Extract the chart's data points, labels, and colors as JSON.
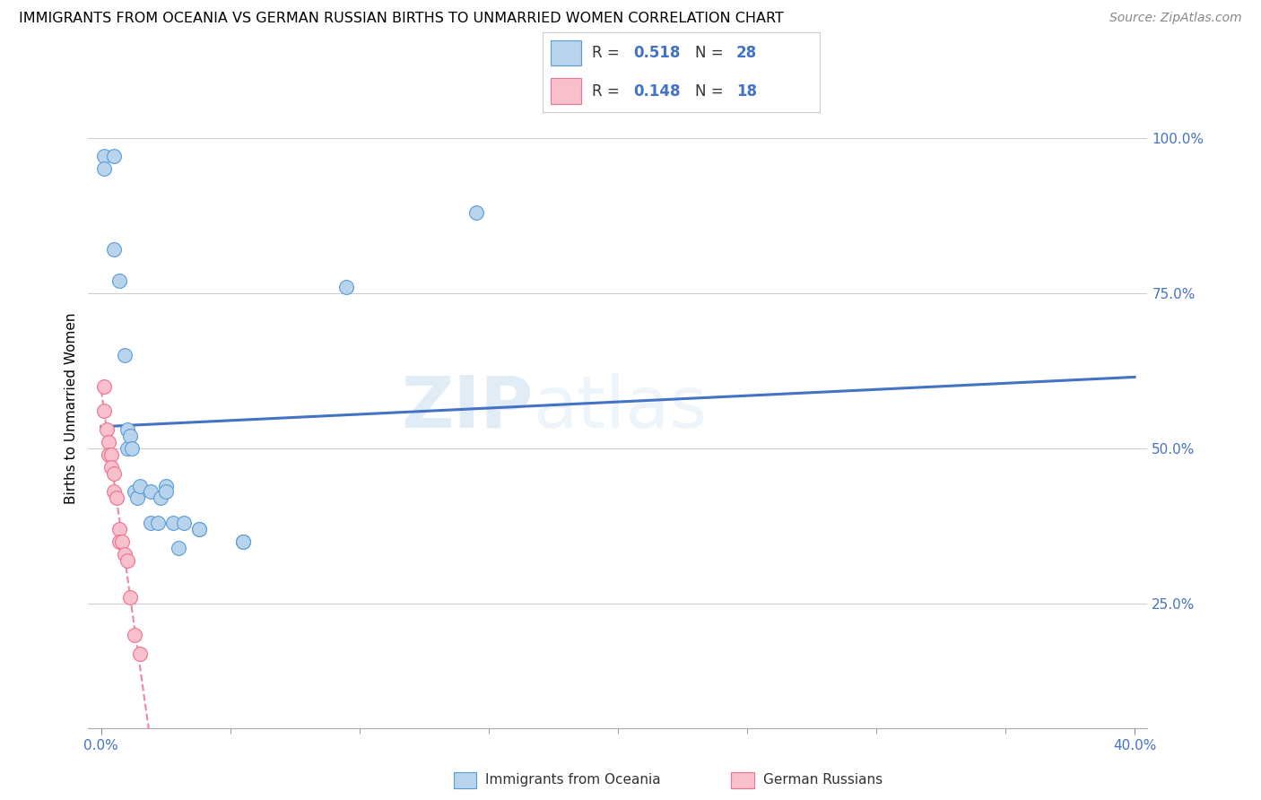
{
  "title": "IMMIGRANTS FROM OCEANIA VS GERMAN RUSSIAN BIRTHS TO UNMARRIED WOMEN CORRELATION CHART",
  "source": "Source: ZipAtlas.com",
  "ylabel": "Births to Unmarried Women",
  "legend_label1": "Immigrants from Oceania",
  "legend_label2": "German Russians",
  "R1": "0.518",
  "N1": "28",
  "R2": "0.148",
  "N2": "18",
  "blue_color": "#b8d4ec",
  "pink_color": "#f8c0cc",
  "blue_edge_color": "#5b9bd5",
  "pink_edge_color": "#f07090",
  "blue_line_color": "#4472c4",
  "pink_line_color": "#f07090",
  "watermark_zip": "ZIP",
  "watermark_atlas": "atlas",
  "xmin": 0.0,
  "xmax": 0.4,
  "ymin": 0.05,
  "ymax": 1.08,
  "right_yticks": [
    0.25,
    0.5,
    0.75,
    1.0
  ],
  "right_yticklabels": [
    "25.0%",
    "50.0%",
    "75.0%",
    "100.0%"
  ],
  "blue_points_x": [
    0.001,
    0.001,
    0.005,
    0.005,
    0.007,
    0.009,
    0.01,
    0.01,
    0.011,
    0.012,
    0.013,
    0.014,
    0.015,
    0.019,
    0.019,
    0.022,
    0.023,
    0.025,
    0.025,
    0.028,
    0.03,
    0.032,
    0.038,
    0.038,
    0.055,
    0.055,
    0.095,
    0.145
  ],
  "blue_points_y": [
    0.97,
    0.95,
    0.97,
    0.82,
    0.77,
    0.65,
    0.53,
    0.5,
    0.52,
    0.5,
    0.43,
    0.42,
    0.44,
    0.43,
    0.38,
    0.38,
    0.42,
    0.44,
    0.43,
    0.38,
    0.34,
    0.38,
    0.37,
    0.37,
    0.35,
    0.35,
    0.76,
    0.88
  ],
  "pink_points_x": [
    0.001,
    0.001,
    0.002,
    0.003,
    0.003,
    0.004,
    0.004,
    0.005,
    0.005,
    0.006,
    0.007,
    0.007,
    0.008,
    0.009,
    0.01,
    0.011,
    0.013,
    0.015
  ],
  "pink_points_y": [
    0.6,
    0.56,
    0.53,
    0.51,
    0.49,
    0.49,
    0.47,
    0.46,
    0.43,
    0.42,
    0.37,
    0.35,
    0.35,
    0.33,
    0.32,
    0.26,
    0.2,
    0.17
  ]
}
